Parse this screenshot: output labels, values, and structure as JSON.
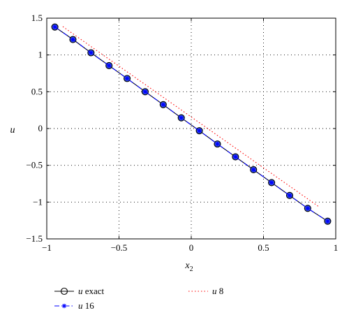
{
  "chart_data": {
    "type": "line",
    "xlabel": "x",
    "xlabel_sub": "2",
    "ylabel": "u",
    "xlim": [
      -1,
      1
    ],
    "ylim": [
      -1.5,
      1.5
    ],
    "xticks": [
      -1,
      -0.5,
      0,
      0.5,
      1
    ],
    "yticks": [
      -1.5,
      -1,
      -0.5,
      0,
      0.5,
      1,
      1.5
    ],
    "xtick_labels": [
      "−1",
      "−0.5",
      "0",
      "0.5",
      "1"
    ],
    "ytick_labels": [
      "−1.5",
      "−1",
      "−0.5",
      "0",
      "0.5",
      "1",
      "1.5"
    ],
    "grid": true,
    "legend_placement": "bottom",
    "series": [
      {
        "name": "u exact",
        "legend_var": "u",
        "legend_rest": " exact",
        "color": "#000000",
        "line": "solid",
        "marker": "circle",
        "x": [
          -0.944,
          -0.819,
          -0.694,
          -0.569,
          -0.444,
          -0.319,
          -0.194,
          -0.069,
          0.056,
          0.181,
          0.306,
          0.431,
          0.556,
          0.681,
          0.806,
          0.944
        ],
        "y": [
          1.38,
          1.21,
          1.03,
          0.855,
          0.68,
          0.5,
          0.325,
          0.145,
          -0.03,
          -0.21,
          -0.385,
          -0.56,
          -0.735,
          -0.91,
          -1.085,
          -1.26
        ]
      },
      {
        "name": "u 16",
        "legend_var": "u",
        "legend_rest": " 16",
        "color": "#0000ff",
        "line": "dashdot",
        "marker": "star",
        "x": [
          -0.944,
          -0.819,
          -0.694,
          -0.569,
          -0.444,
          -0.319,
          -0.194,
          -0.069,
          0.056,
          0.181,
          0.306,
          0.431,
          0.556,
          0.681,
          0.806,
          0.944
        ],
        "y": [
          1.38,
          1.21,
          1.03,
          0.855,
          0.68,
          0.5,
          0.325,
          0.145,
          -0.03,
          -0.21,
          -0.385,
          -0.56,
          -0.735,
          -0.91,
          -1.085,
          -1.26
        ]
      },
      {
        "name": "u 8",
        "legend_var": "u",
        "legend_rest": " 8",
        "color": "#ff0000",
        "line": "dotted",
        "marker": "none",
        "x": [
          -0.889,
          -0.667,
          -0.444,
          -0.222,
          0.0,
          0.222,
          0.444,
          0.667,
          0.889
        ],
        "y": [
          1.385,
          1.078,
          0.771,
          0.464,
          0.157,
          -0.15,
          -0.457,
          -0.764,
          -1.071
        ]
      }
    ]
  },
  "colors": {
    "marker_fill": "#3f5fe0",
    "grid": "#000000"
  }
}
